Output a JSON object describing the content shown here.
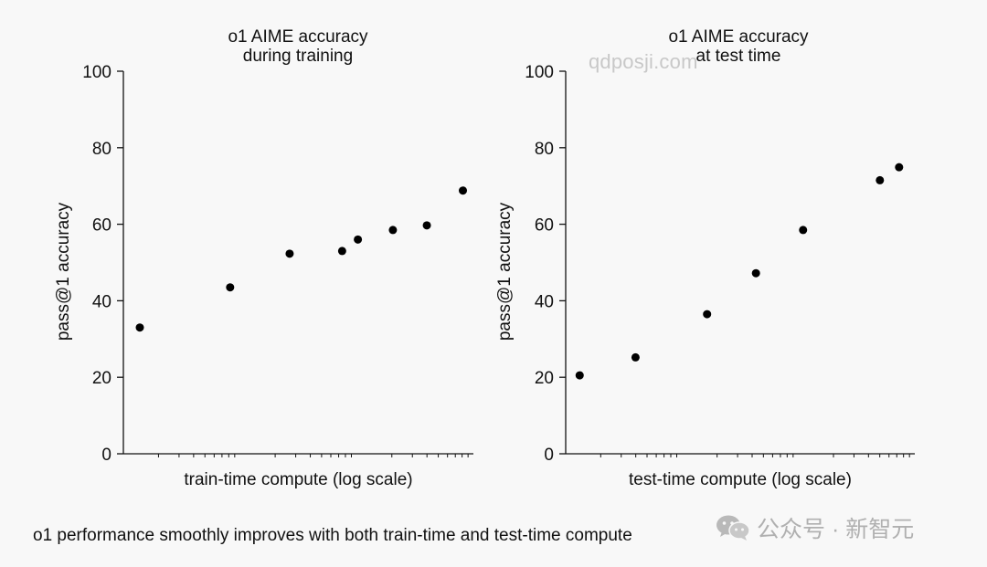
{
  "caption": "o1 performance smoothly improves with both train-time and test-time compute",
  "watermark_text": "qdposji.com",
  "brand": {
    "text": "公众号 · 新智元",
    "icon": "wechat-icon"
  },
  "colors": {
    "background": "#f8f8f8",
    "marker": "#000000",
    "axis": "#111111",
    "watermark": "#c8c8c8",
    "brand": "#b0b0b0"
  },
  "chart_data": [
    {
      "type": "scatter",
      "title_lines": [
        "o1 AIME accuracy",
        "during training"
      ],
      "xlabel": "train-time compute (log scale)",
      "ylabel": "pass@1 accuracy",
      "xscale": "log",
      "x_tick_labels": "none",
      "x_minor_ticks": true,
      "xlim": [
        0,
        1
      ],
      "ylim": [
        0,
        100
      ],
      "yticks": [
        0,
        20,
        40,
        60,
        80,
        100
      ],
      "grid": false,
      "legend": "none",
      "points": [
        {
          "x": 0.047,
          "y": 33
        },
        {
          "x": 0.305,
          "y": 43.5
        },
        {
          "x": 0.475,
          "y": 52.3
        },
        {
          "x": 0.625,
          "y": 53
        },
        {
          "x": 0.67,
          "y": 56
        },
        {
          "x": 0.77,
          "y": 58.5
        },
        {
          "x": 0.867,
          "y": 59.7
        },
        {
          "x": 0.97,
          "y": 68.8
        }
      ]
    },
    {
      "type": "scatter",
      "title_lines": [
        "o1 AIME accuracy",
        "at test time"
      ],
      "xlabel": "test-time compute (log scale)",
      "ylabel": "pass@1 accuracy",
      "xscale": "log",
      "x_tick_labels": "none",
      "x_minor_ticks": true,
      "xlim": [
        0,
        1
      ],
      "ylim": [
        0,
        100
      ],
      "yticks": [
        0,
        20,
        40,
        60,
        80,
        100
      ],
      "grid": false,
      "legend": "none",
      "points": [
        {
          "x": 0.04,
          "y": 20.5
        },
        {
          "x": 0.2,
          "y": 25.2
        },
        {
          "x": 0.405,
          "y": 36.5
        },
        {
          "x": 0.545,
          "y": 47.2
        },
        {
          "x": 0.68,
          "y": 58.5
        },
        {
          "x": 0.9,
          "y": 71.5
        },
        {
          "x": 0.955,
          "y": 74.9
        }
      ]
    }
  ]
}
